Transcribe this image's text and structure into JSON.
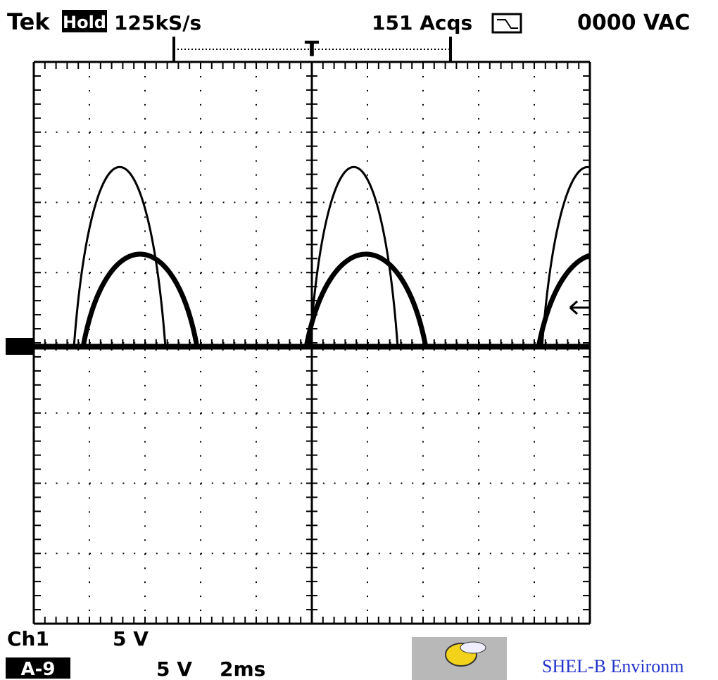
{
  "header": {
    "brand": "Tek",
    "mode": "Hold",
    "sample_rate": "125kS/s",
    "acquisitions": "151 Acqs",
    "readout": "0000 VAC"
  },
  "footer": {
    "channel": "Ch1",
    "volts_per_div": "5 V",
    "label": "A-9",
    "math_volts": "5 V",
    "time_per_div": "2ms"
  },
  "watermark": "SHEL-B Environm"
}
